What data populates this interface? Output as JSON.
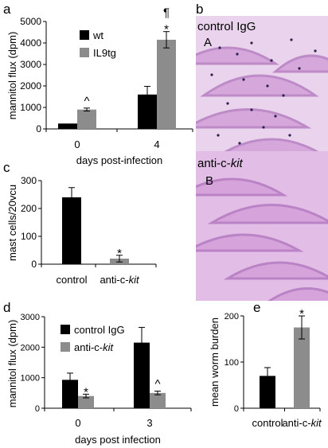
{
  "colors": {
    "wt": "#000000",
    "il9tg": "#8c8c8c",
    "control": "#000000",
    "anti": "#8c8c8c",
    "tissue": "#d9a6dc",
    "tissue_dark": "#b67fc2",
    "cell": "#2b2250"
  },
  "chart_data": [
    {
      "panel": "a",
      "type": "bar",
      "categories": [
        "0",
        "4"
      ],
      "series": [
        {
          "name": "wt",
          "values": [
            250,
            1600
          ],
          "errors": [
            0,
            380
          ]
        },
        {
          "name": "IL9tg",
          "values": [
            900,
            4150
          ],
          "errors": [
            70,
            380
          ]
        }
      ],
      "annotations": [
        {
          "series": 1,
          "category": 0,
          "text": "^"
        },
        {
          "series": 1,
          "category": 1,
          "text": "*"
        },
        {
          "series": 1,
          "category": 1,
          "text": "¶"
        }
      ],
      "xlabel": "days post-infection",
      "ylabel": "mannitol flux (dpm)",
      "ylim": [
        0,
        5000
      ],
      "yticks": [
        "0",
        "1000",
        "2000",
        "3000",
        "4000",
        "5000"
      ],
      "legend": "top-left",
      "grid": false
    },
    {
      "panel": "c",
      "type": "bar",
      "categories": [
        "control",
        "anti-c-kit"
      ],
      "series": [
        {
          "name": "",
          "values": [
            240,
            20
          ],
          "errors": [
            35,
            12
          ]
        }
      ],
      "annotations": [
        {
          "series": 0,
          "category": 1,
          "text": "*"
        }
      ],
      "xlabel": "",
      "ylabel": "mast cells/20vcu",
      "ylim": [
        0,
        300
      ],
      "yticks": [
        "0",
        "100",
        "200",
        "300"
      ],
      "grid": false
    },
    {
      "panel": "d",
      "type": "bar",
      "categories": [
        "0",
        "3"
      ],
      "series": [
        {
          "name": "control IgG",
          "values": [
            930,
            2150
          ],
          "errors": [
            220,
            500
          ]
        },
        {
          "name": "anti-c-kit",
          "values": [
            400,
            500
          ],
          "errors": [
            60,
            60
          ]
        }
      ],
      "annotations": [
        {
          "series": 1,
          "category": 0,
          "text": "*"
        },
        {
          "series": 1,
          "category": 1,
          "text": "^"
        }
      ],
      "xlabel": "days post infection",
      "ylabel": "mannitol flux (dpm)",
      "ylim": [
        0,
        3000
      ],
      "yticks": [
        "0",
        "1000",
        "2000",
        "3000"
      ],
      "legend": "top-left",
      "grid": false
    },
    {
      "panel": "e",
      "type": "bar",
      "categories": [
        "control",
        "anti-c-kit"
      ],
      "series": [
        {
          "name": "",
          "values": [
            70,
            175
          ],
          "errors": [
            18,
            25
          ]
        }
      ],
      "annotations": [
        {
          "series": 0,
          "category": 1,
          "text": "*"
        }
      ],
      "xlabel": "",
      "ylabel": "mean worm burden",
      "ylim": [
        0,
        200
      ],
      "yticks": [
        "0",
        "100",
        "200"
      ],
      "grid": false
    }
  ],
  "panels": {
    "a": "a",
    "b": "b",
    "c": "c",
    "d": "d",
    "e": "e"
  },
  "histology": {
    "top_caption": "control IgG",
    "top_letter": "A",
    "bottom_caption_prefix": "anti-c-",
    "bottom_caption_italic": "kit",
    "bottom_letter": "B"
  }
}
